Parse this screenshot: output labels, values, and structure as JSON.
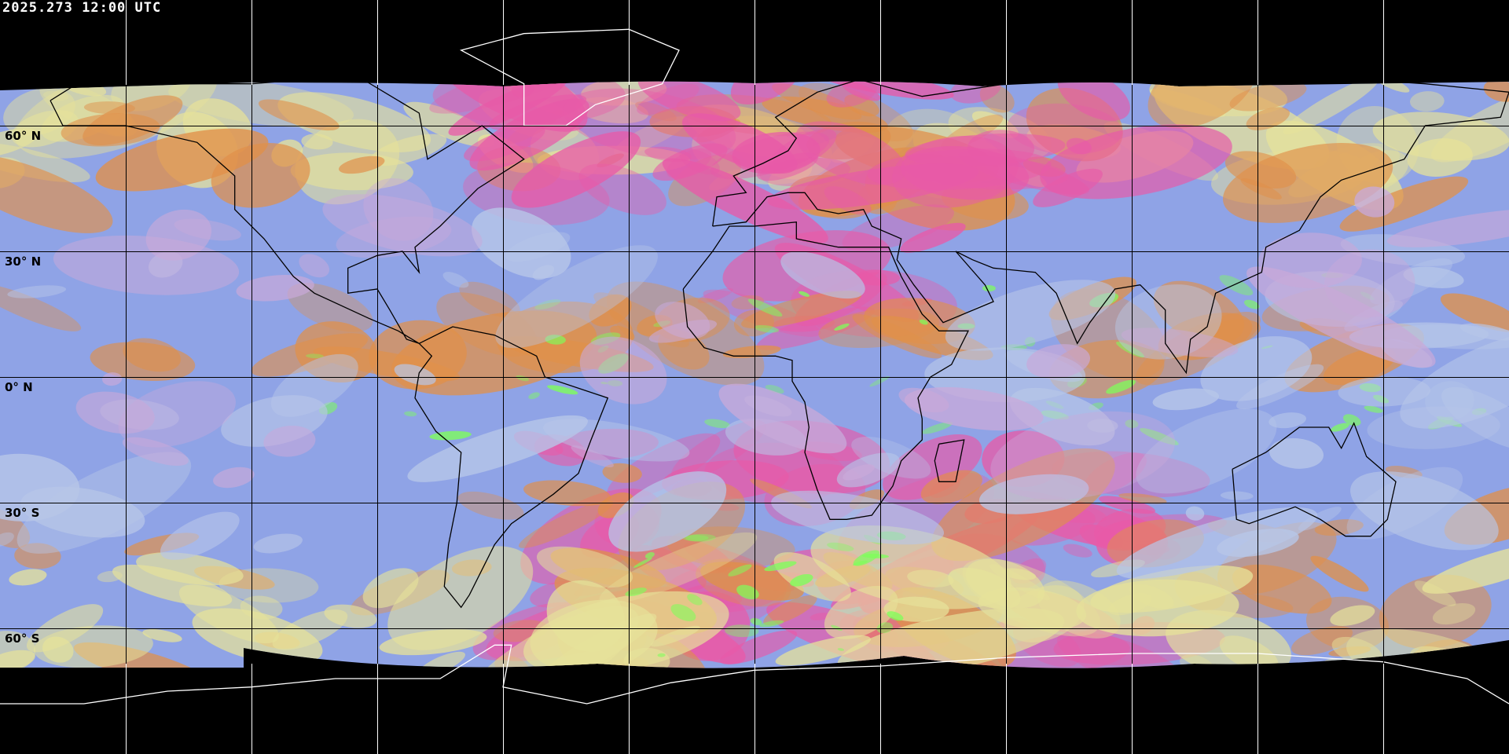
{
  "header": {
    "timestamp": "2025.273 12:00 UTC"
  },
  "latitude_labels": [
    {
      "label": "60° N",
      "lat": 60
    },
    {
      "label": "30° N",
      "lat": 30
    },
    {
      "label": "0° N",
      "lat": 0
    },
    {
      "label": "30° S",
      "lat": -30
    },
    {
      "label": "60° S",
      "lat": -60
    }
  ],
  "grid": {
    "lon_step_deg": 30,
    "lat_step_deg": 30
  },
  "colors": {
    "background": "#000000",
    "coastline_in_space": "#ffffff",
    "coastline_on_imagery": "#000000",
    "clear_ocean": "#8fa3e6",
    "dust_pink": "#e85aa8",
    "high_cloud_orange": "#e0904a",
    "cloud_yellow": "#e6e29a",
    "convection_green": "#7dff5a"
  }
}
